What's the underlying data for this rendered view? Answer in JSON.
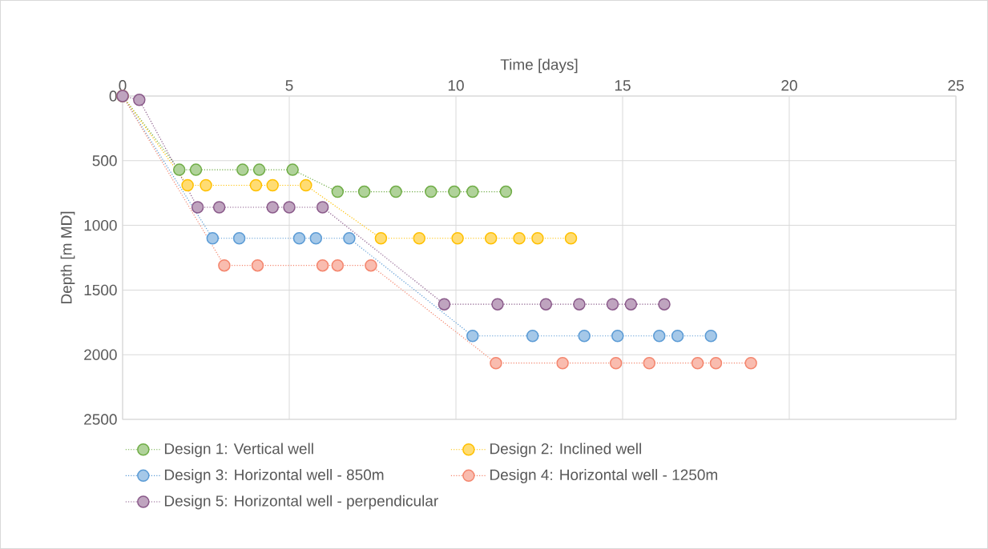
{
  "chart_data": {
    "type": "line",
    "xlabel": "Time [days]",
    "ylabel": "Depth [m MD]",
    "xlim": [
      0,
      25
    ],
    "xticks": [
      0,
      5,
      10,
      15,
      20,
      25
    ],
    "ylim": [
      2500,
      0
    ],
    "yticks": [
      0,
      500,
      1000,
      1500,
      2000,
      2500
    ],
    "grid": true,
    "legend": "bottom",
    "marker": "circle",
    "line_style": "dotted",
    "series": [
      {
        "name": "Design 1: Vertical well",
        "color": "#70ad47",
        "x": [
          0,
          0.5,
          1.7,
          2.2,
          3.6,
          4.1,
          5.1,
          6.45,
          7.25,
          8.2,
          9.25,
          9.95,
          10.5,
          11.5
        ],
        "values": [
          0,
          null,
          570,
          570,
          570,
          570,
          570,
          740,
          740,
          740,
          740,
          740,
          740,
          740
        ]
      },
      {
        "name": "Design 2: Inclined well",
        "color": "#ffc000",
        "x": [
          0,
          0.5,
          1.95,
          2.5,
          4.0,
          4.5,
          5.5,
          7.75,
          8.9,
          10.05,
          11.05,
          11.9,
          12.45,
          13.45
        ],
        "values": [
          0,
          null,
          690,
          690,
          690,
          690,
          690,
          1100,
          1100,
          1100,
          1100,
          1100,
          1100,
          1100
        ]
      },
      {
        "name": "Design 3: Horizontal well - 850m",
        "color": "#5b9bd5",
        "x": [
          0,
          0.5,
          2.7,
          3.5,
          5.3,
          5.8,
          6.8,
          10.5,
          12.3,
          13.85,
          14.85,
          16.1,
          16.65,
          17.65
        ],
        "values": [
          0,
          null,
          1100,
          1100,
          1100,
          1100,
          1100,
          1855,
          1855,
          1855,
          1855,
          1855,
          1855,
          1855
        ]
      },
      {
        "name": "Design 4: Horizontal well - 1250m",
        "color": "#f4866e",
        "x": [
          0,
          0.5,
          3.05,
          4.05,
          6.0,
          6.45,
          7.45,
          11.2,
          13.2,
          14.8,
          15.8,
          17.25,
          17.8,
          18.85
        ],
        "values": [
          0,
          null,
          1310,
          1310,
          1310,
          1310,
          1310,
          2065,
          2065,
          2065,
          2065,
          2065,
          2065,
          2065
        ]
      },
      {
        "name": "Design 5: Horizontal well - perpendicular",
        "color": "#8a5a8a",
        "x": [
          0,
          0.5,
          2.25,
          2.9,
          4.5,
          5.0,
          6.0,
          9.65,
          11.25,
          12.7,
          13.7,
          14.7,
          15.25,
          16.25
        ],
        "values": [
          0,
          30,
          860,
          860,
          860,
          860,
          860,
          1610,
          1610,
          1610,
          1610,
          1610,
          1610,
          1610
        ]
      }
    ]
  }
}
